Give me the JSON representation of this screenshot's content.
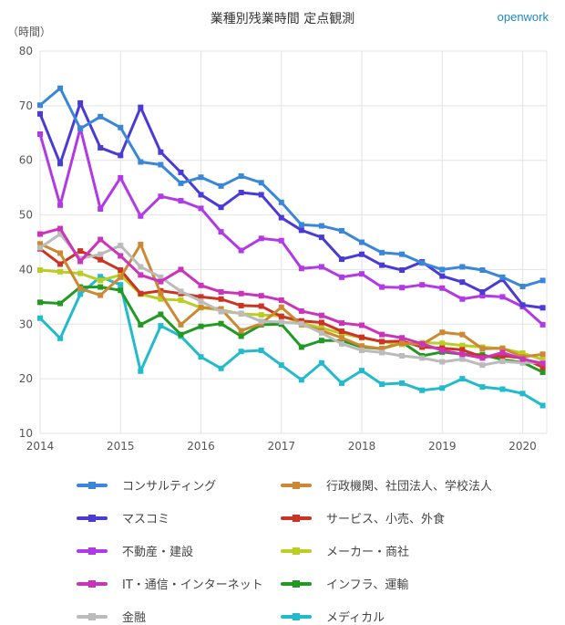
{
  "header": {
    "title": "業種別残業時間 定点観測",
    "brand": "openwork",
    "unit": "（時間）"
  },
  "chart_data": {
    "type": "line",
    "title": "業種別残業時間 定点観測",
    "ylabel": "（時間）",
    "xlabel": "",
    "xlim": [
      2014,
      2020.3
    ],
    "ylim": [
      10,
      80
    ],
    "yticks": [
      10,
      20,
      30,
      40,
      50,
      60,
      70,
      80
    ],
    "xticks": [
      2014,
      2015,
      2016,
      2017,
      2018,
      2019,
      2020
    ],
    "grid": true,
    "legend_position": "bottom",
    "x": [
      2014.0,
      2014.25,
      2014.5,
      2014.75,
      2015.0,
      2015.25,
      2015.5,
      2015.75,
      2016.0,
      2016.25,
      2016.5,
      2016.75,
      2017.0,
      2017.25,
      2017.5,
      2017.75,
      2018.0,
      2018.25,
      2018.5,
      2018.75,
      2019.0,
      2019.25,
      2019.5,
      2019.75,
      2020.0,
      2020.25
    ],
    "series": [
      {
        "name": "コンサルティング",
        "color": "#3a86d8",
        "values": [
          70.1,
          73.2,
          65.8,
          68.0,
          66.0,
          59.7,
          59.2,
          55.8,
          56.9,
          55.3,
          57.1,
          55.9,
          52.3,
          48.2,
          48.0,
          47.1,
          45.0,
          43.1,
          42.8,
          41.2,
          40.0,
          40.5,
          39.9,
          38.6,
          36.9,
          38.0
        ]
      },
      {
        "name": "マスコミ",
        "color": "#4a3ad6",
        "values": [
          68.5,
          59.4,
          70.5,
          62.3,
          60.9,
          69.7,
          61.5,
          57.8,
          53.7,
          51.4,
          54.1,
          53.7,
          49.5,
          47.2,
          45.9,
          41.9,
          42.8,
          40.8,
          39.9,
          41.4,
          38.8,
          37.7,
          35.9,
          38.2,
          33.5,
          33.0
        ]
      },
      {
        "name": "不動産・建設",
        "color": "#b13ae6",
        "values": [
          64.8,
          51.8,
          65.9,
          51.1,
          56.8,
          49.8,
          53.4,
          52.6,
          51.2,
          46.9,
          43.5,
          45.7,
          45.3,
          40.2,
          40.5,
          38.6,
          39.2,
          36.8,
          36.7,
          37.2,
          36.6,
          34.6,
          35.2,
          35.0,
          33.2,
          29.9
        ]
      },
      {
        "name": "IT・通信・インターネット",
        "color": "#cc33bb",
        "values": [
          46.5,
          47.5,
          41.5,
          45.5,
          42.5,
          39.0,
          37.8,
          40.0,
          37.1,
          35.9,
          35.6,
          35.2,
          34.4,
          32.4,
          31.6,
          30.2,
          29.8,
          28.1,
          27.5,
          26.4,
          25.2,
          24.5,
          23.8,
          24.8,
          23.6,
          22.8
        ]
      },
      {
        "name": "金融",
        "color": "#bbbbbb",
        "values": [
          44.0,
          46.5,
          42.0,
          42.8,
          44.4,
          40.5,
          38.6,
          36.0,
          34.2,
          32.3,
          32.0,
          30.5,
          30.4,
          30.1,
          28.4,
          26.4,
          25.2,
          24.8,
          24.2,
          23.8,
          23.1,
          23.6,
          22.5,
          23.2,
          22.9,
          23.0
        ]
      },
      {
        "name": "行政機関、社団法人、学校法人",
        "color": "#cc8833",
        "values": [
          44.7,
          43.0,
          36.5,
          35.3,
          38.6,
          44.6,
          35.6,
          29.9,
          33.1,
          32.8,
          28.8,
          30.1,
          33.1,
          29.9,
          28.8,
          27.5,
          26.0,
          25.5,
          26.5,
          26.3,
          28.5,
          28.1,
          25.5,
          25.6,
          24.0,
          24.5
        ]
      },
      {
        "name": "サービス、小売、外食",
        "color": "#cc3322",
        "values": [
          43.8,
          41.0,
          43.4,
          41.8,
          39.9,
          35.6,
          36.1,
          35.6,
          35.0,
          34.6,
          33.4,
          33.3,
          31.4,
          30.6,
          30.3,
          28.7,
          27.6,
          26.8,
          26.9,
          25.8,
          25.6,
          25.3,
          24.0,
          24.2,
          23.8,
          22.1
        ]
      },
      {
        "name": "メーカー・商社",
        "color": "#bbcc22",
        "values": [
          39.9,
          39.6,
          39.3,
          38.0,
          39.0,
          35.5,
          34.6,
          34.4,
          33.0,
          32.6,
          31.9,
          31.7,
          31.5,
          30.2,
          29.3,
          28.3,
          27.5,
          26.8,
          26.3,
          26.6,
          26.5,
          26.1,
          25.8,
          25.5,
          24.7,
          23.5
        ]
      },
      {
        "name": "インフラ、運輸",
        "color": "#229922",
        "values": [
          34.0,
          33.8,
          36.8,
          36.8,
          36.2,
          29.9,
          31.8,
          28.1,
          29.6,
          30.1,
          27.8,
          29.9,
          30.0,
          25.8,
          27.0,
          27.0,
          25.8,
          25.5,
          26.7,
          24.2,
          24.9,
          24.5,
          24.4,
          23.5,
          23.0,
          21.2
        ]
      },
      {
        "name": "メディカル",
        "color": "#22bbcc",
        "values": [
          31.1,
          27.4,
          35.5,
          38.7,
          37.2,
          21.4,
          29.7,
          27.8,
          24.0,
          21.9,
          25.0,
          25.2,
          22.5,
          19.8,
          22.9,
          19.2,
          21.5,
          19.0,
          19.2,
          17.9,
          18.3,
          20.0,
          18.5,
          18.1,
          17.3,
          15.1
        ]
      }
    ]
  }
}
